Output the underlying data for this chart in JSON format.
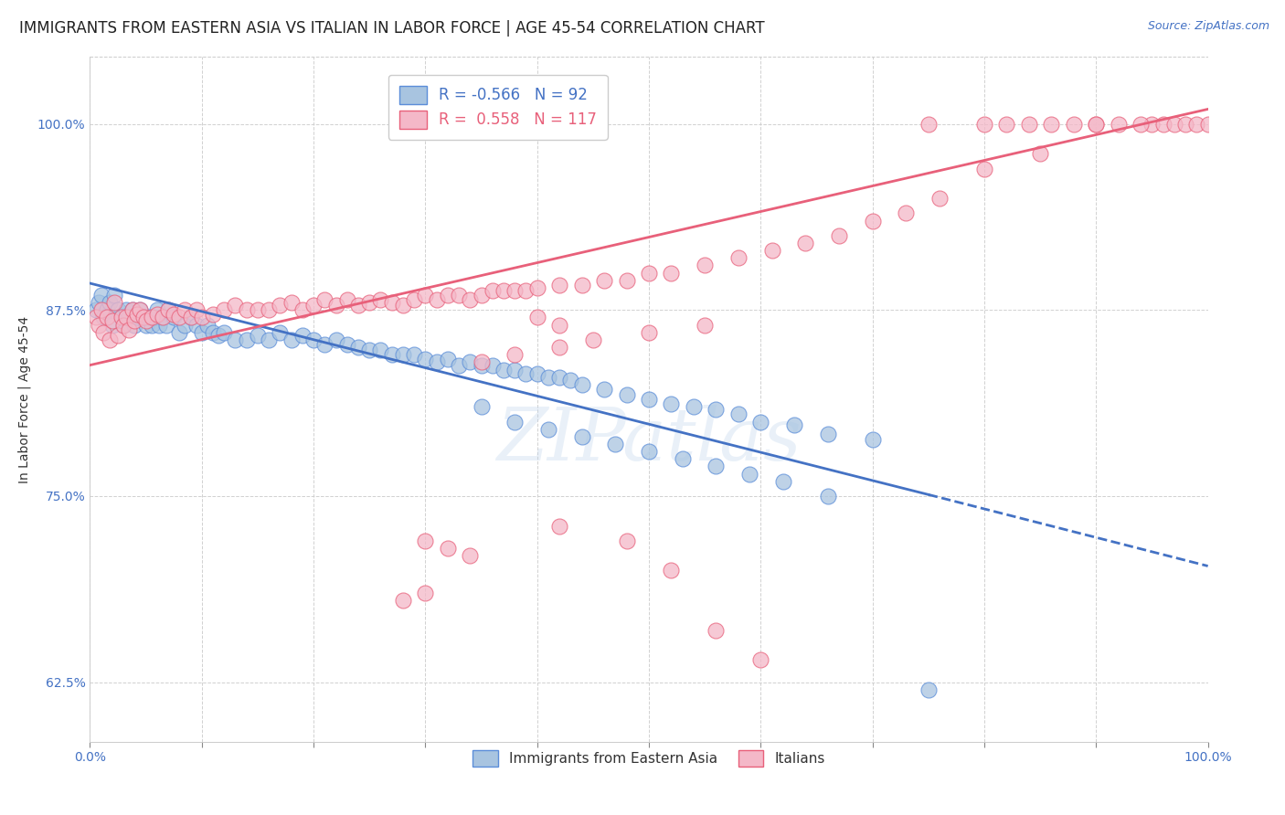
{
  "title": "IMMIGRANTS FROM EASTERN ASIA VS ITALIAN IN LABOR FORCE | AGE 45-54 CORRELATION CHART",
  "source": "Source: ZipAtlas.com",
  "ylabel": "In Labor Force | Age 45-54",
  "legend_blue_label": "Immigrants from Eastern Asia",
  "legend_pink_label": "Italians",
  "blue_r": "-0.566",
  "blue_n": "92",
  "pink_r": "0.558",
  "pink_n": "117",
  "blue_color": "#a8c4e0",
  "pink_color": "#f4b8c8",
  "blue_edge_color": "#5b8dd9",
  "pink_edge_color": "#e8607a",
  "blue_line_color": "#4472c4",
  "pink_line_color": "#e8607a",
  "watermark": "ZIPatlas",
  "blue_points_x": [
    0.005,
    0.008,
    0.01,
    0.012,
    0.015,
    0.018,
    0.02,
    0.022,
    0.025,
    0.028,
    0.03,
    0.032,
    0.035,
    0.038,
    0.04,
    0.042,
    0.045,
    0.048,
    0.05,
    0.052,
    0.055,
    0.058,
    0.06,
    0.062,
    0.065,
    0.068,
    0.07,
    0.075,
    0.08,
    0.085,
    0.09,
    0.095,
    0.1,
    0.105,
    0.11,
    0.115,
    0.12,
    0.13,
    0.14,
    0.15,
    0.16,
    0.17,
    0.18,
    0.19,
    0.2,
    0.21,
    0.22,
    0.23,
    0.24,
    0.25,
    0.26,
    0.27,
    0.28,
    0.29,
    0.3,
    0.31,
    0.32,
    0.33,
    0.34,
    0.35,
    0.36,
    0.37,
    0.38,
    0.39,
    0.4,
    0.41,
    0.42,
    0.43,
    0.44,
    0.46,
    0.48,
    0.5,
    0.52,
    0.54,
    0.56,
    0.58,
    0.6,
    0.63,
    0.66,
    0.7,
    0.35,
    0.38,
    0.41,
    0.44,
    0.47,
    0.5,
    0.53,
    0.56,
    0.59,
    0.62,
    0.66,
    0.75
  ],
  "blue_points_y": [
    0.875,
    0.88,
    0.885,
    0.87,
    0.875,
    0.88,
    0.865,
    0.885,
    0.875,
    0.87,
    0.865,
    0.875,
    0.87,
    0.875,
    0.865,
    0.87,
    0.875,
    0.87,
    0.865,
    0.87,
    0.865,
    0.87,
    0.875,
    0.865,
    0.87,
    0.865,
    0.875,
    0.87,
    0.86,
    0.865,
    0.87,
    0.865,
    0.86,
    0.865,
    0.86,
    0.858,
    0.86,
    0.855,
    0.855,
    0.858,
    0.855,
    0.86,
    0.855,
    0.858,
    0.855,
    0.852,
    0.855,
    0.852,
    0.85,
    0.848,
    0.848,
    0.845,
    0.845,
    0.845,
    0.842,
    0.84,
    0.842,
    0.838,
    0.84,
    0.838,
    0.838,
    0.835,
    0.835,
    0.832,
    0.832,
    0.83,
    0.83,
    0.828,
    0.825,
    0.822,
    0.818,
    0.815,
    0.812,
    0.81,
    0.808,
    0.805,
    0.8,
    0.798,
    0.792,
    0.788,
    0.81,
    0.8,
    0.795,
    0.79,
    0.785,
    0.78,
    0.775,
    0.77,
    0.765,
    0.76,
    0.75,
    0.62
  ],
  "pink_points_x": [
    0.005,
    0.008,
    0.01,
    0.012,
    0.015,
    0.018,
    0.02,
    0.022,
    0.025,
    0.028,
    0.03,
    0.032,
    0.035,
    0.038,
    0.04,
    0.042,
    0.045,
    0.048,
    0.05,
    0.055,
    0.06,
    0.065,
    0.07,
    0.075,
    0.08,
    0.085,
    0.09,
    0.095,
    0.1,
    0.11,
    0.12,
    0.13,
    0.14,
    0.15,
    0.16,
    0.17,
    0.18,
    0.19,
    0.2,
    0.21,
    0.22,
    0.23,
    0.24,
    0.25,
    0.26,
    0.27,
    0.28,
    0.29,
    0.3,
    0.31,
    0.32,
    0.33,
    0.34,
    0.35,
    0.36,
    0.37,
    0.38,
    0.39,
    0.4,
    0.42,
    0.44,
    0.46,
    0.48,
    0.5,
    0.52,
    0.55,
    0.58,
    0.61,
    0.64,
    0.67,
    0.7,
    0.73,
    0.76,
    0.8,
    0.85,
    0.9,
    0.95,
    0.96,
    0.97,
    0.98,
    0.99,
    1.0,
    0.75,
    0.8,
    0.82,
    0.84,
    0.86,
    0.88,
    0.9,
    0.92,
    0.94,
    0.4,
    0.42,
    0.35,
    0.38,
    0.42,
    0.45,
    0.5,
    0.55,
    0.3,
    0.32,
    0.34,
    0.28,
    0.3,
    0.42,
    0.48,
    0.52,
    0.56,
    0.6
  ],
  "pink_points_y": [
    0.87,
    0.865,
    0.875,
    0.86,
    0.87,
    0.855,
    0.868,
    0.88,
    0.858,
    0.87,
    0.865,
    0.87,
    0.862,
    0.875,
    0.868,
    0.872,
    0.875,
    0.87,
    0.868,
    0.87,
    0.872,
    0.87,
    0.875,
    0.872,
    0.87,
    0.875,
    0.87,
    0.875,
    0.87,
    0.872,
    0.875,
    0.878,
    0.875,
    0.875,
    0.875,
    0.878,
    0.88,
    0.875,
    0.878,
    0.882,
    0.878,
    0.882,
    0.878,
    0.88,
    0.882,
    0.88,
    0.878,
    0.882,
    0.885,
    0.882,
    0.885,
    0.885,
    0.882,
    0.885,
    0.888,
    0.888,
    0.888,
    0.888,
    0.89,
    0.892,
    0.892,
    0.895,
    0.895,
    0.9,
    0.9,
    0.905,
    0.91,
    0.915,
    0.92,
    0.925,
    0.935,
    0.94,
    0.95,
    0.97,
    0.98,
    1.0,
    1.0,
    1.0,
    1.0,
    1.0,
    1.0,
    1.0,
    1.0,
    1.0,
    1.0,
    1.0,
    1.0,
    1.0,
    1.0,
    1.0,
    1.0,
    0.87,
    0.865,
    0.84,
    0.845,
    0.85,
    0.855,
    0.86,
    0.865,
    0.72,
    0.715,
    0.71,
    0.68,
    0.685,
    0.73,
    0.72,
    0.7,
    0.66,
    0.64
  ],
  "blue_trend_start_x": 0.0,
  "blue_trend_start_y": 0.893,
  "blue_trend_end_solid_x": 0.75,
  "blue_trend_end_solid_y": 0.751,
  "blue_trend_end_dash_x": 1.0,
  "blue_trend_end_dash_y": 0.703,
  "pink_trend_start_x": 0.0,
  "pink_trend_start_y": 0.838,
  "pink_trend_end_x": 1.0,
  "pink_trend_end_y": 1.01,
  "xlim": [
    0.0,
    1.0
  ],
  "ylim": [
    0.585,
    1.045
  ],
  "xticks": [
    0.0,
    0.1,
    0.2,
    0.3,
    0.4,
    0.5,
    0.6,
    0.7,
    0.8,
    0.9,
    1.0
  ],
  "ytick_values": [
    0.625,
    0.75,
    0.875,
    1.0
  ],
  "ytick_labels": [
    "62.5%",
    "75.0%",
    "87.5%",
    "100.0%"
  ],
  "xtick_label_left": "0.0%",
  "xtick_label_right": "100.0%",
  "bg_color": "#ffffff",
  "grid_color": "#cccccc",
  "title_fontsize": 12,
  "tick_fontsize": 10,
  "source_fontsize": 9,
  "axis_label_fontsize": 10
}
